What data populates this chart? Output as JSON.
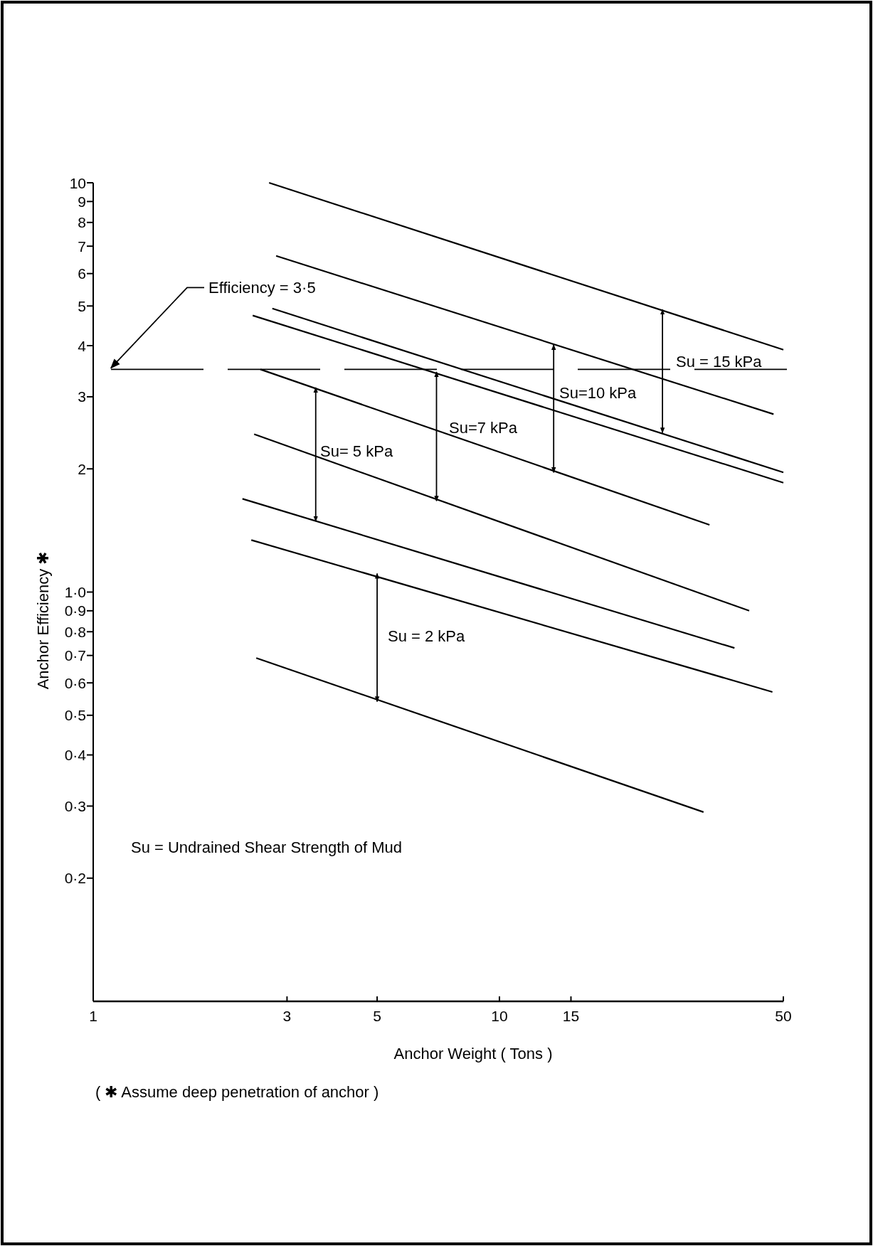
{
  "chart_data": {
    "type": "line",
    "xlabel": "Anchor Weight ( Tons )",
    "ylabel": "Anchor Efficiency ✱",
    "log": "xy",
    "xlim": [
      1,
      50
    ],
    "ylim": [
      0.1,
      10
    ],
    "xticks": [
      1,
      3,
      5,
      10,
      15,
      50
    ],
    "yticks": [
      {
        "value": 0.2,
        "label": "0·2"
      },
      {
        "value": 0.3,
        "label": "0·3"
      },
      {
        "value": 0.4,
        "label": "0·4"
      },
      {
        "value": 0.5,
        "label": "0·5"
      },
      {
        "value": 0.6,
        "label": "0·6"
      },
      {
        "value": 0.7,
        "label": "0·7"
      },
      {
        "value": 0.8,
        "label": "0·8"
      },
      {
        "value": 0.9,
        "label": "0·9"
      },
      {
        "value": 1,
        "label": "1·0"
      },
      2,
      3,
      4,
      5,
      6,
      7,
      8,
      9,
      10
    ],
    "grid": false,
    "marker": "none",
    "line_style": "solid",
    "series": [
      {
        "color": "#000000",
        "x": [
          2.71,
          50
        ],
        "values": [
          10,
          3.91
        ]
      },
      {
        "color": "#000000",
        "x": [
          2.82,
          47.3
        ],
        "values": [
          6.63,
          2.72
        ]
      },
      {
        "color": "#000000",
        "x": [
          2.76,
          50
        ],
        "values": [
          4.93,
          1.96
        ]
      },
      {
        "color": "#000000",
        "x": [
          2.47,
          50
        ],
        "values": [
          4.74,
          1.85
        ]
      },
      {
        "color": "#000000",
        "x": [
          2.58,
          32.9
        ],
        "values": [
          3.5,
          1.46
        ]
      },
      {
        "color": "#000000",
        "x": [
          2.49,
          41.2
        ],
        "values": [
          2.43,
          0.9
        ]
      },
      {
        "color": "#000000",
        "x": [
          2.33,
          37.9
        ],
        "values": [
          1.69,
          0.73
        ]
      },
      {
        "color": "#000000",
        "x": [
          2.45,
          47
        ],
        "values": [
          1.34,
          0.57
        ]
      },
      {
        "color": "#000000",
        "x": [
          2.52,
          31.8
        ],
        "values": [
          0.69,
          0.29
        ]
      },
      {
        "color": "#000000",
        "x": [
          25.2,
          25.2
        ],
        "values": [
          4.9,
          2.45
        ]
      },
      {
        "color": "#000000",
        "x": [
          13.6,
          13.6
        ],
        "values": [
          4.02,
          1.96
        ]
      },
      {
        "color": "#000000",
        "x": [
          7,
          7
        ],
        "values": [
          3.45,
          1.67
        ]
      },
      {
        "color": "#000000",
        "x": [
          3.53,
          3.53
        ],
        "values": [
          3.16,
          1.49
        ]
      },
      {
        "color": "#000000",
        "x": [
          5,
          5
        ],
        "values": [
          1.11,
          0.54
        ]
      }
    ],
    "ref_lines": [
      {
        "axis": "y",
        "value": 3.5,
        "label": "Efficiency = 3·5",
        "line_style": "dashed",
        "color": "#000000"
      }
    ],
    "annotations": [
      "Su = 15 kPa",
      "Su=10 kPa",
      "Su=7 kPa",
      "Su= 5 kPa",
      "Su = 2 kPa",
      "Su = Undrained Shear Strength of Mud",
      "( ✱ Assume deep penetration of anchor )"
    ]
  }
}
